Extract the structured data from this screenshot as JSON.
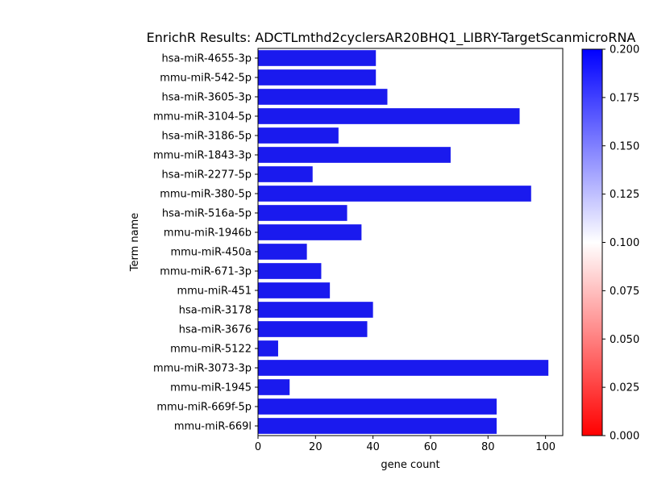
{
  "chart_data": {
    "type": "bar",
    "orientation": "horizontal",
    "title": "EnrichR Results: ADCTLmthd2cyclersAR20BHQ1_LIBRY-TargetScanmicroRNA",
    "xlabel": "gene count",
    "ylabel": "Term name",
    "xlim": [
      0,
      106
    ],
    "xticks": [
      0,
      20,
      40,
      60,
      80,
      100
    ],
    "grid": false,
    "bar_color": "#1a1aee",
    "categories": [
      "hsa-miR-4655-3p",
      "mmu-miR-542-5p",
      "hsa-miR-3605-3p",
      "mmu-miR-3104-5p",
      "hsa-miR-3186-5p",
      "mmu-miR-1843-3p",
      "hsa-miR-2277-5p",
      "mmu-miR-380-5p",
      "hsa-miR-516a-5p",
      "mmu-miR-1946b",
      "mmu-miR-450a",
      "mmu-miR-671-3p",
      "mmu-miR-451",
      "hsa-miR-3178",
      "hsa-miR-3676",
      "mmu-miR-5122",
      "mmu-miR-3073-3p",
      "mmu-miR-1945",
      "mmu-miR-669f-5p",
      "mmu-miR-669l"
    ],
    "values": [
      41,
      41,
      45,
      91,
      28,
      67,
      19,
      95,
      31,
      36,
      17,
      22,
      25,
      40,
      38,
      7,
      101,
      11,
      83,
      83
    ],
    "colorbar": {
      "range": [
        0.0,
        0.2
      ],
      "ticks": [
        "0.000",
        "0.025",
        "0.050",
        "0.075",
        "0.100",
        "0.125",
        "0.150",
        "0.175",
        "0.200"
      ],
      "colors": [
        "#ff0000",
        "#ffffff",
        "#0000ff"
      ]
    }
  }
}
